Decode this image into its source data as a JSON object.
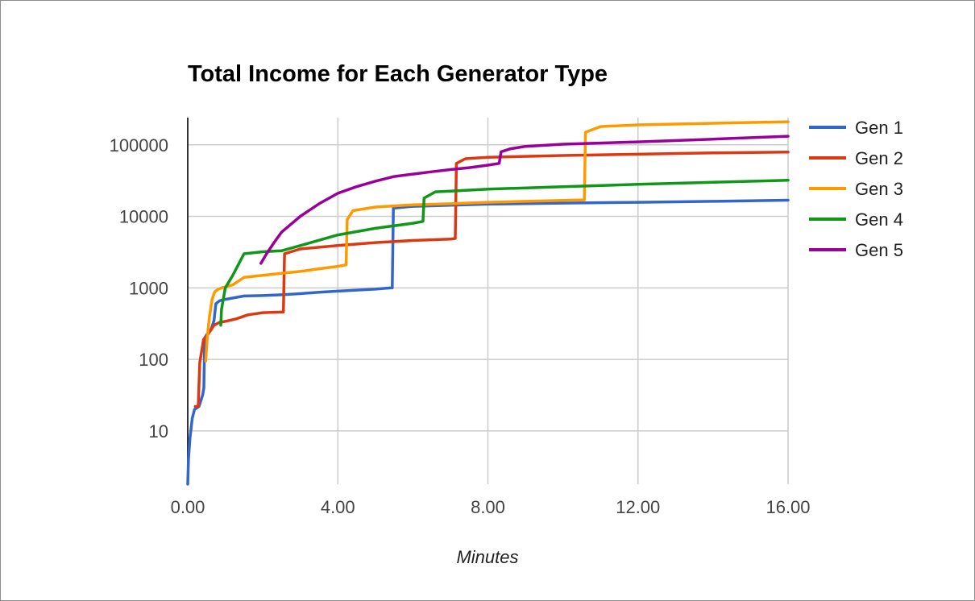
{
  "chart_data": {
    "type": "line",
    "title": "Total Income for Each Generator Type",
    "xlabel": "Minutes",
    "ylabel": "",
    "y_scale": "log",
    "xlim": [
      0,
      16
    ],
    "ylim": [
      1.8,
      240000
    ],
    "x_ticks": [
      0,
      4,
      8,
      12,
      16
    ],
    "x_tick_labels": [
      "0.00",
      "4.00",
      "8.00",
      "12.00",
      "16.00"
    ],
    "y_ticks": [
      10,
      100,
      1000,
      10000,
      100000
    ],
    "y_tick_labels": [
      "10",
      "100",
      "1000",
      "10000",
      "100000"
    ],
    "legend_position": "right",
    "grid": true,
    "series": [
      {
        "name": "Gen 1",
        "color": "#3366cc",
        "points": [
          [
            0.0,
            1.8
          ],
          [
            0.02,
            4
          ],
          [
            0.06,
            8
          ],
          [
            0.12,
            15
          ],
          [
            0.18,
            20
          ],
          [
            0.3,
            22
          ],
          [
            0.4,
            32
          ],
          [
            0.43,
            40
          ],
          [
            0.45,
            200
          ],
          [
            0.55,
            240
          ],
          [
            0.62,
            260
          ],
          [
            0.7,
            350
          ],
          [
            0.75,
            600
          ],
          [
            0.85,
            660
          ],
          [
            1.0,
            690
          ],
          [
            1.5,
            770
          ],
          [
            2.0,
            780
          ],
          [
            2.5,
            800
          ],
          [
            3.0,
            830
          ],
          [
            3.5,
            870
          ],
          [
            4.0,
            900
          ],
          [
            4.5,
            930
          ],
          [
            5.0,
            960
          ],
          [
            5.43,
            1000
          ],
          [
            5.45,
            1000
          ],
          [
            5.48,
            13000
          ],
          [
            6.0,
            13800
          ],
          [
            8.0,
            14800
          ],
          [
            10.0,
            15300
          ],
          [
            12.0,
            15700
          ],
          [
            14.0,
            16200
          ],
          [
            16.0,
            16800
          ]
        ]
      },
      {
        "name": "Gen 2",
        "color": "#dc3912",
        "points": [
          [
            0.2,
            22
          ],
          [
            0.28,
            22
          ],
          [
            0.32,
            90
          ],
          [
            0.42,
            190
          ],
          [
            0.5,
            210
          ],
          [
            0.6,
            250
          ],
          [
            0.7,
            300
          ],
          [
            0.85,
            330
          ],
          [
            1.0,
            340
          ],
          [
            1.3,
            370
          ],
          [
            1.6,
            420
          ],
          [
            2.0,
            450
          ],
          [
            2.55,
            460
          ],
          [
            2.58,
            3000
          ],
          [
            3.0,
            3500
          ],
          [
            4.0,
            3900
          ],
          [
            5.0,
            4300
          ],
          [
            6.0,
            4600
          ],
          [
            7.0,
            4800
          ],
          [
            7.13,
            4900
          ],
          [
            7.16,
            55000
          ],
          [
            7.4,
            64000
          ],
          [
            8.0,
            67000
          ],
          [
            10.0,
            71000
          ],
          [
            12.0,
            74000
          ],
          [
            14.0,
            77000
          ],
          [
            16.0,
            79000
          ]
        ]
      },
      {
        "name": "Gen 3",
        "color": "#ff9900",
        "points": [
          [
            0.48,
            95
          ],
          [
            0.52,
            200
          ],
          [
            0.58,
            400
          ],
          [
            0.65,
            700
          ],
          [
            0.72,
            880
          ],
          [
            0.8,
            950
          ],
          [
            0.9,
            1000
          ],
          [
            1.2,
            1100
          ],
          [
            1.5,
            1400
          ],
          [
            2.0,
            1500
          ],
          [
            2.5,
            1600
          ],
          [
            3.0,
            1700
          ],
          [
            3.5,
            1850
          ],
          [
            4.0,
            2000
          ],
          [
            4.22,
            2100
          ],
          [
            4.25,
            9000
          ],
          [
            4.4,
            12000
          ],
          [
            5.0,
            13500
          ],
          [
            6.0,
            14500
          ],
          [
            7.0,
            15000
          ],
          [
            8.0,
            15700
          ],
          [
            9.0,
            16200
          ],
          [
            10.0,
            16700
          ],
          [
            10.57,
            17000
          ],
          [
            10.6,
            150000
          ],
          [
            11.0,
            180000
          ],
          [
            12.0,
            190000
          ],
          [
            14.0,
            200000
          ],
          [
            16.0,
            210000
          ]
        ]
      },
      {
        "name": "Gen 4",
        "color": "#109618",
        "points": [
          [
            0.88,
            300
          ],
          [
            0.9,
            500
          ],
          [
            1.0,
            1000
          ],
          [
            1.2,
            1500
          ],
          [
            1.5,
            3000
          ],
          [
            2.0,
            3200
          ],
          [
            2.5,
            3300
          ],
          [
            3.0,
            3900
          ],
          [
            4.0,
            5500
          ],
          [
            5.0,
            6800
          ],
          [
            6.0,
            8000
          ],
          [
            6.27,
            8500
          ],
          [
            6.3,
            18000
          ],
          [
            6.6,
            22000
          ],
          [
            7.0,
            22500
          ],
          [
            8.0,
            24000
          ],
          [
            10.0,
            26000
          ],
          [
            12.0,
            28000
          ],
          [
            14.0,
            30000
          ],
          [
            16.0,
            32000
          ]
        ]
      },
      {
        "name": "Gen 5",
        "color": "#990099",
        "points": [
          [
            1.95,
            2200
          ],
          [
            2.1,
            3000
          ],
          [
            2.3,
            4300
          ],
          [
            2.5,
            6000
          ],
          [
            3.0,
            10000
          ],
          [
            3.5,
            15000
          ],
          [
            4.0,
            21000
          ],
          [
            4.5,
            26000
          ],
          [
            5.0,
            31000
          ],
          [
            5.5,
            36000
          ],
          [
            6.0,
            39000
          ],
          [
            6.5,
            42000
          ],
          [
            7.0,
            45000
          ],
          [
            7.5,
            48000
          ],
          [
            8.0,
            52000
          ],
          [
            8.3,
            55000
          ],
          [
            8.35,
            80000
          ],
          [
            8.6,
            88000
          ],
          [
            9.0,
            95000
          ],
          [
            10.0,
            102000
          ],
          [
            12.0,
            110000
          ],
          [
            14.0,
            120000
          ],
          [
            16.0,
            132000
          ]
        ]
      }
    ]
  }
}
